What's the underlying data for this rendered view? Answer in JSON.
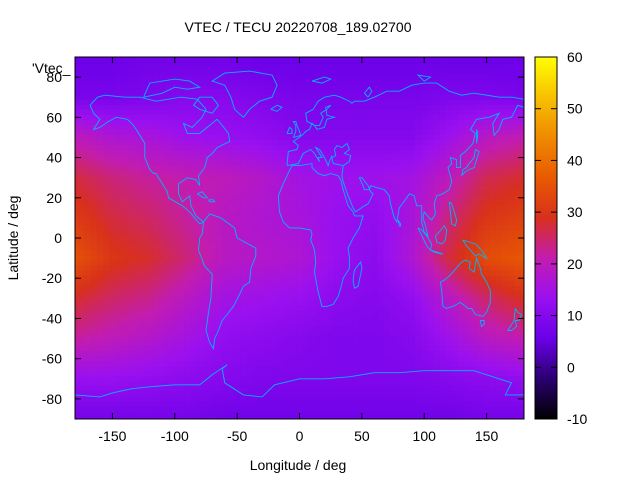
{
  "chart_data": {
    "type": "heatmap",
    "title": "VTEC / TECU 20220708_189.02700",
    "xlabel": "Longitude / deg",
    "ylabel": "Latitude / deg",
    "key_label": "'Vtec_",
    "xlim": [
      -180,
      180
    ],
    "ylim": [
      -90,
      90
    ],
    "xticks": [
      -150,
      -100,
      -50,
      0,
      50,
      100,
      150
    ],
    "yticks": [
      -80,
      -60,
      -40,
      -20,
      0,
      20,
      40,
      60,
      80
    ],
    "colorbar": {
      "range": [
        -10,
        60
      ],
      "ticks": [
        -10,
        0,
        10,
        20,
        30,
        40,
        50,
        60
      ],
      "palette": [
        "#000000",
        "#2a0070",
        "#6a00e8",
        "#9a10f0",
        "#c21cb0",
        "#d8301c",
        "#e85a00",
        "#f08a00",
        "#f8c000",
        "#ffff00"
      ]
    },
    "grid": {
      "lons": [
        -180,
        -150,
        -120,
        -90,
        -60,
        -30,
        0,
        30,
        60,
        90,
        120,
        150,
        180
      ],
      "lats": [
        87.5,
        70,
        50,
        30,
        10,
        -10,
        -30,
        -50,
        -70,
        -87.5
      ],
      "vtec": [
        [
          6,
          6,
          7,
          7,
          7,
          6,
          6,
          6,
          6,
          6,
          6,
          6,
          6
        ],
        [
          8,
          8,
          9,
          10,
          10,
          9,
          8,
          8,
          8,
          8,
          9,
          9,
          8
        ],
        [
          20,
          17,
          16,
          14,
          13,
          12,
          10,
          10,
          10,
          10,
          14,
          19,
          21
        ],
        [
          27,
          24,
          22,
          21,
          20,
          18,
          15,
          14,
          14,
          15,
          20,
          26,
          28
        ],
        [
          31,
          27,
          25,
          22,
          19,
          17,
          16,
          13,
          12,
          16,
          24,
          30,
          32
        ],
        [
          35,
          30,
          28,
          24,
          19,
          18,
          17,
          13,
          11,
          17,
          27,
          34,
          36
        ],
        [
          28,
          25,
          23,
          19,
          15,
          14,
          13,
          11,
          10,
          12,
          19,
          25,
          29
        ],
        [
          22,
          20,
          18,
          15,
          12,
          11,
          10,
          9,
          9,
          10,
          14,
          19,
          21
        ],
        [
          13,
          13,
          12,
          11,
          10,
          9,
          9,
          9,
          9,
          9,
          10,
          11,
          12
        ],
        [
          8,
          8,
          8,
          8,
          7,
          7,
          7,
          7,
          7,
          7,
          7,
          8,
          8
        ]
      ]
    },
    "overlay": "coastlines",
    "overlay_color": "#00b4ff"
  }
}
